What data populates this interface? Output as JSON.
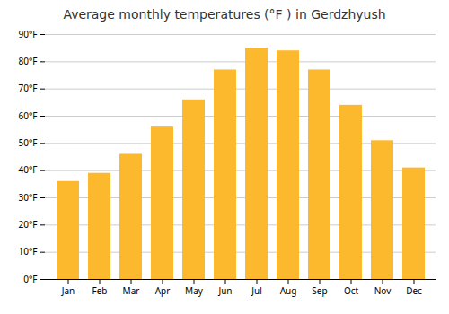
{
  "chart_data": {
    "type": "bar",
    "title": "Average monthly temperatures (°F ) in Gerdzhyush",
    "categories": [
      "Jan",
      "Feb",
      "Mar",
      "Apr",
      "May",
      "Jun",
      "Jul",
      "Aug",
      "Sep",
      "Oct",
      "Nov",
      "Dec"
    ],
    "values": [
      36,
      39,
      46,
      56,
      66,
      77,
      85,
      84,
      77,
      64,
      51,
      41
    ],
    "color": "#FDB92E",
    "ylim": [
      0,
      90
    ],
    "yticks": [
      {
        "value": 0,
        "label": "0°F"
      },
      {
        "value": 10,
        "label": "10°F"
      },
      {
        "value": 20,
        "label": "20°F"
      },
      {
        "value": 30,
        "label": "30°F"
      },
      {
        "value": 40,
        "label": "40°F"
      },
      {
        "value": 50,
        "label": "50°F"
      },
      {
        "value": 60,
        "label": "60°F"
      },
      {
        "value": 70,
        "label": "70°F"
      },
      {
        "value": 80,
        "label": "80°F"
      },
      {
        "value": 90,
        "label": "90°F"
      }
    ],
    "grid": true
  }
}
